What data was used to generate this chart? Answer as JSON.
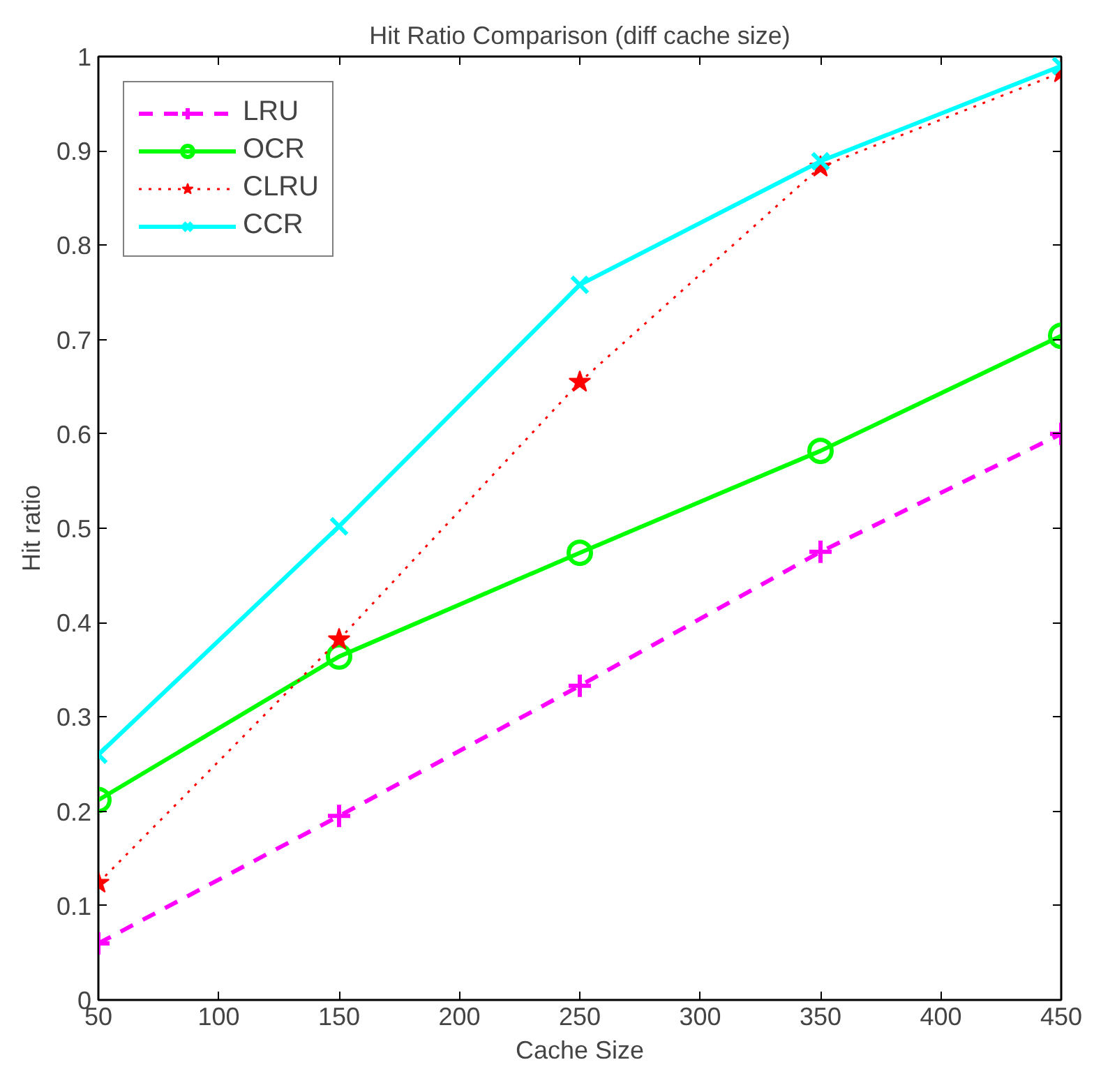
{
  "chart_data": {
    "type": "line",
    "title": "Hit Ratio Comparison (diff cache size)",
    "xlabel": "Cache Size",
    "ylabel": "Hit ratio",
    "x": [
      50,
      150,
      250,
      350,
      450
    ],
    "xlim": [
      50,
      450
    ],
    "xticks": [
      50,
      100,
      150,
      200,
      250,
      300,
      350,
      400,
      450
    ],
    "ylim": [
      0,
      1
    ],
    "yticks": [
      0,
      0.1,
      0.2,
      0.3,
      0.4,
      0.5,
      0.6,
      0.7,
      0.8,
      0.9,
      1
    ],
    "grid": false,
    "legend": "top left",
    "series": [
      {
        "name": "LRU",
        "color": "#ff00ff",
        "marker": "cross",
        "line_style": "dashed",
        "values": [
          0.06,
          0.195,
          0.333,
          0.475,
          0.6
        ]
      },
      {
        "name": "OCR",
        "color": "#00ff00",
        "marker": "circle",
        "line_style": "solid",
        "values": [
          0.212,
          0.364,
          0.474,
          0.582,
          0.704
        ]
      },
      {
        "name": "CLRU",
        "color": "#ff0000",
        "marker": "star",
        "line_style": "dotted",
        "values": [
          0.124,
          0.382,
          0.655,
          0.883,
          0.983
        ]
      },
      {
        "name": "CCR",
        "color": "#00ffff",
        "marker": "x",
        "line_style": "solid",
        "values": [
          0.26,
          0.502,
          0.758,
          0.889,
          0.99
        ]
      }
    ]
  }
}
